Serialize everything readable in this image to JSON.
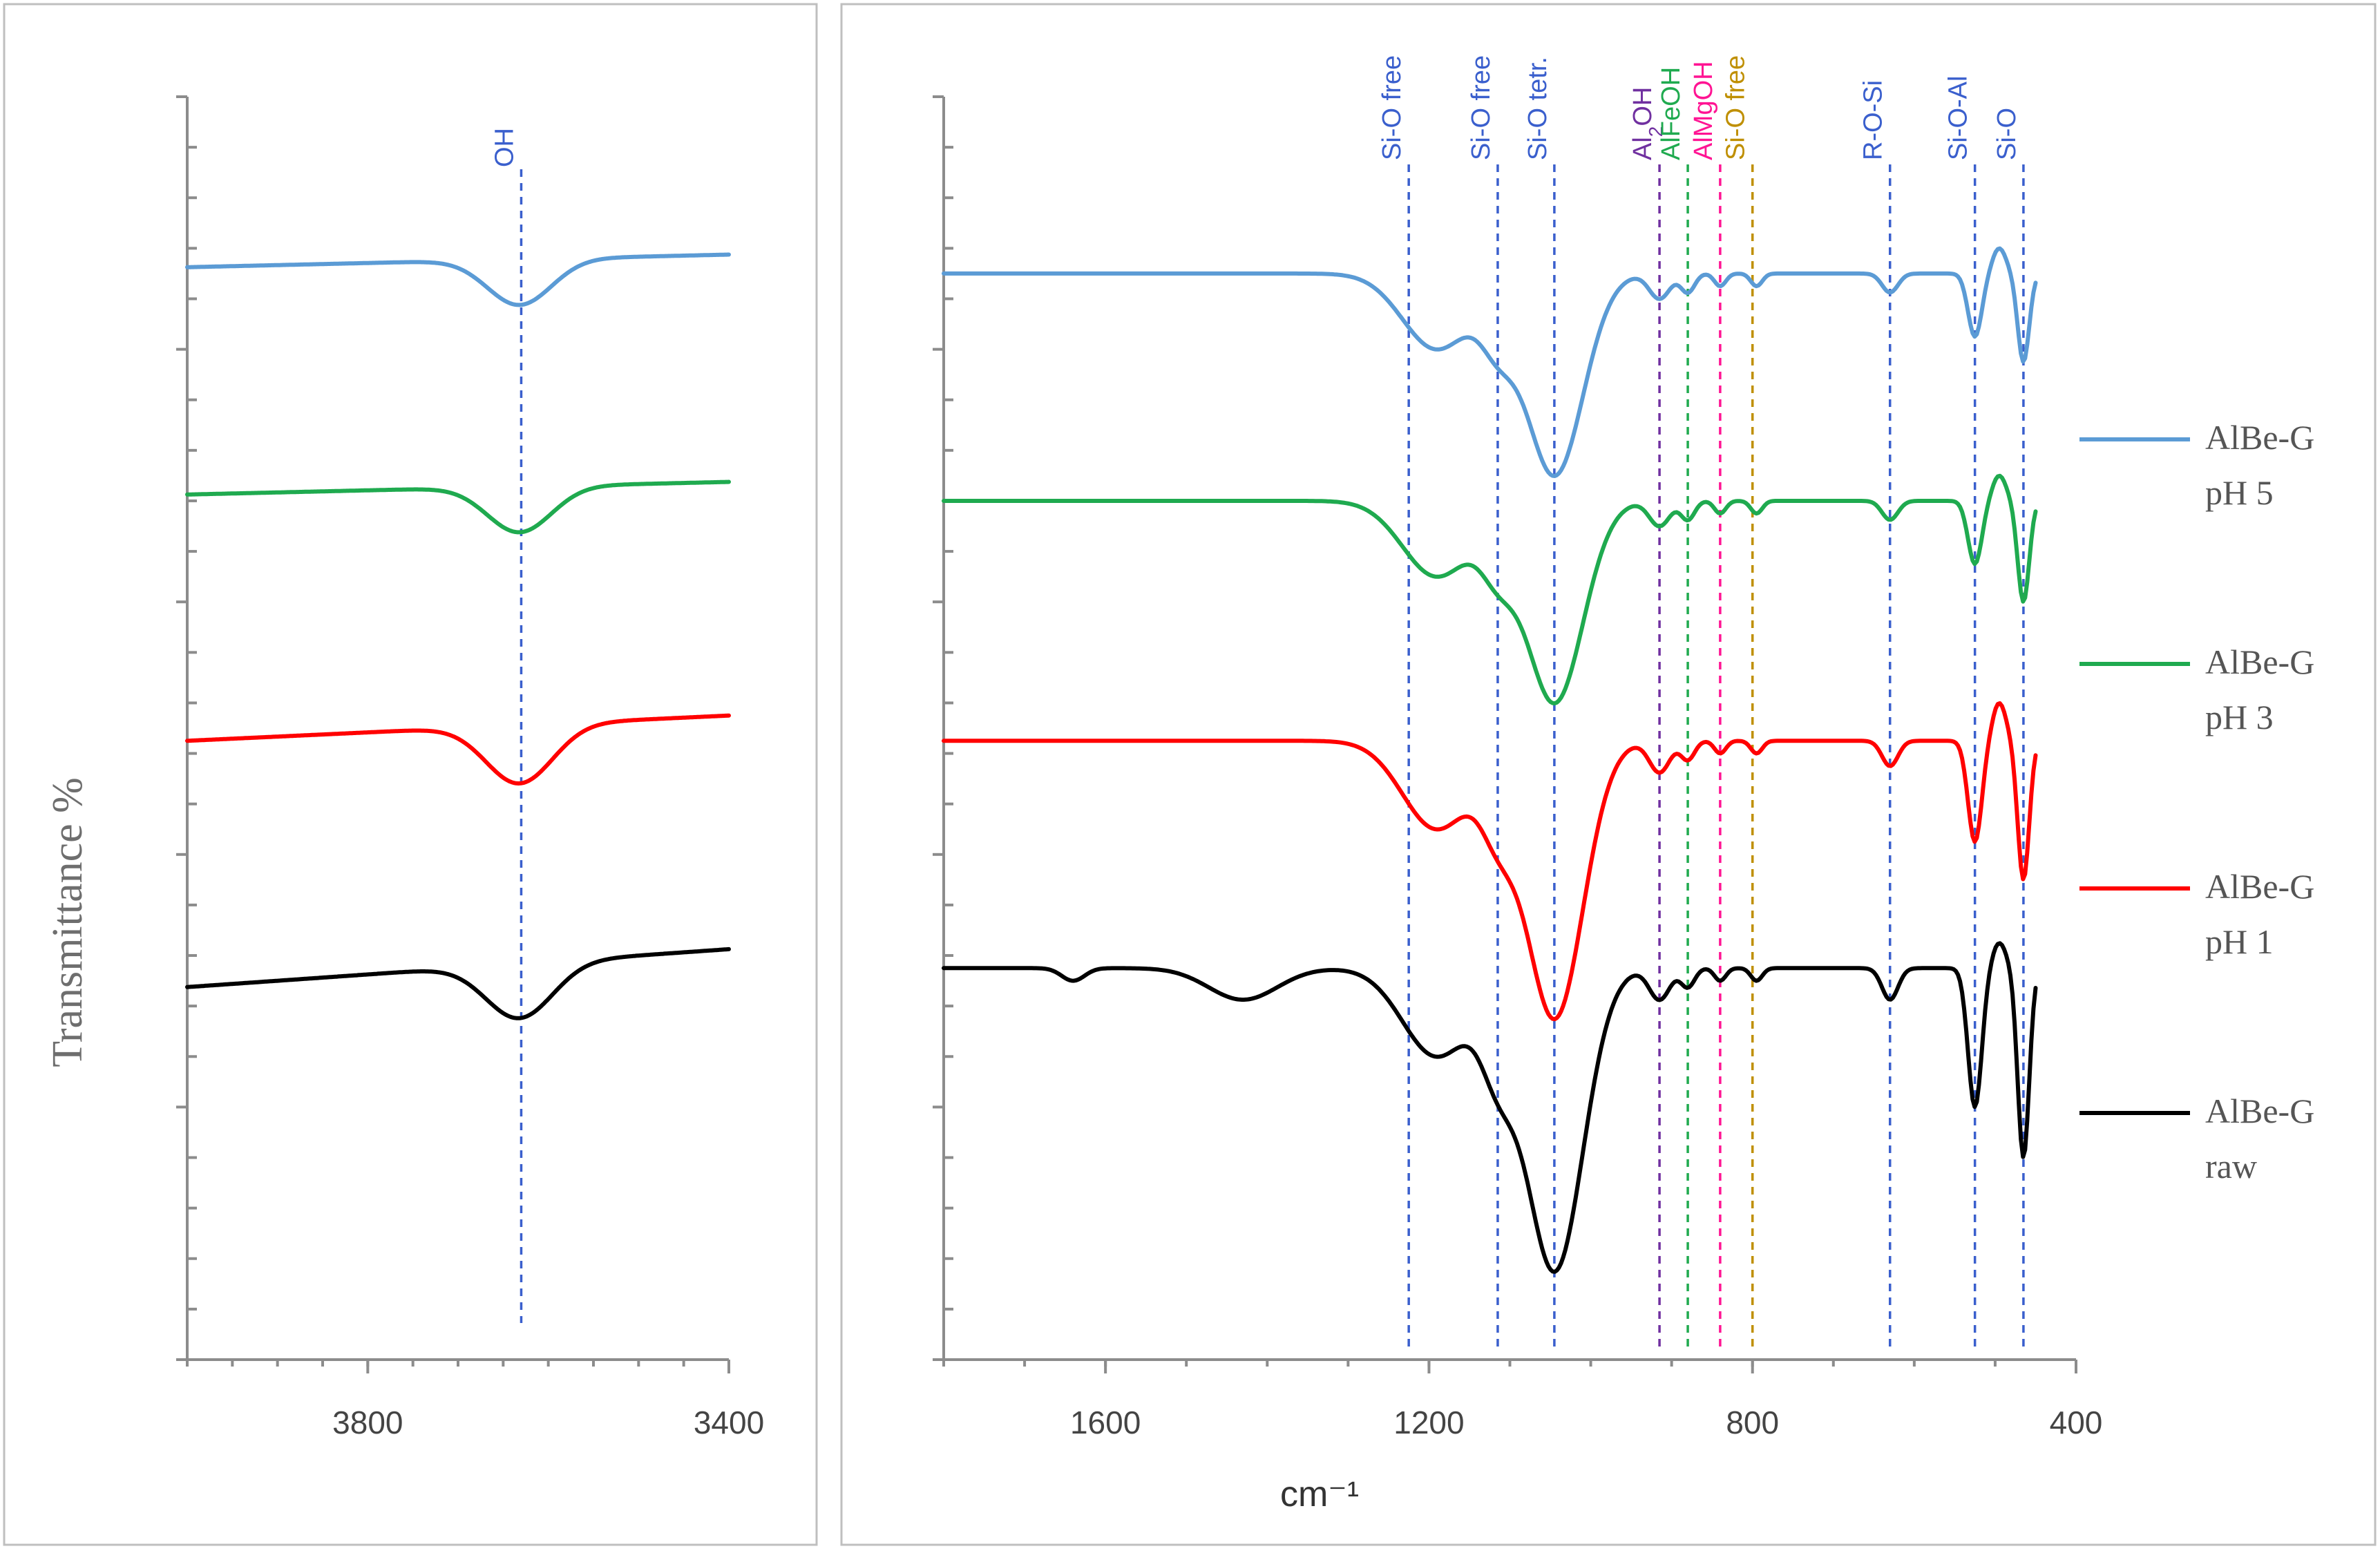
{
  "chart_data": [
    {
      "id": "left",
      "type": "line",
      "title": "",
      "xlabel": "",
      "ylabel": "Transmittance %",
      "xlim": [
        4000,
        3400
      ],
      "x_reversed": true,
      "ylim": [
        0,
        100
      ],
      "ticks": [
        {
          "value": 3800,
          "label": "3800"
        },
        {
          "value": 3400,
          "label": "3400"
        }
      ],
      "major_y_count": 5,
      "minor_per_major": 4,
      "annotations": [
        {
          "x": 3630,
          "label": "OH",
          "color": "#3a5fcd"
        }
      ],
      "series": [
        {
          "name": "AlBe-G pH 5",
          "color": "#5b9bd5",
          "baseline": 87,
          "slope": -1,
          "bands": [
            [
              3632,
              3.6,
              50
            ]
          ]
        },
        {
          "name": "AlBe-G pH 3",
          "color": "#1faa4f",
          "baseline": 69,
          "slope": -1,
          "bands": [
            [
              3632,
              3.6,
              50
            ]
          ]
        },
        {
          "name": "AlBe-G pH 1",
          "color": "#ff0000",
          "baseline": 50,
          "slope": -2,
          "bands": [
            [
              3632,
              4.6,
              52
            ]
          ]
        },
        {
          "name": "AlBe-G raw",
          "color": "#000000",
          "baseline": 31,
          "slope": -3,
          "bands": [
            [
              3632,
              4.3,
              52
            ]
          ]
        }
      ]
    },
    {
      "id": "right",
      "type": "line",
      "title": "",
      "xlabel": "cm⁻¹",
      "ylabel": "",
      "xlim": [
        1800,
        400
      ],
      "x_reversed": true,
      "ylim": [
        0,
        100
      ],
      "ticks": [
        {
          "value": 1600,
          "label": "1600"
        },
        {
          "value": 1200,
          "label": "1200"
        },
        {
          "value": 800,
          "label": "800"
        },
        {
          "value": 400,
          "label": "400"
        }
      ],
      "major_y_count": 5,
      "minor_per_major": 4,
      "annotations": [
        {
          "x": 1225,
          "label": "Si-O free",
          "color": "#3a5fcd"
        },
        {
          "x": 1115,
          "label": "Si-O free",
          "color": "#3a5fcd"
        },
        {
          "x": 1045,
          "label": "Si-O tetr.",
          "color": "#3a5fcd"
        },
        {
          "x": 915,
          "label": "Al₂OH",
          "color": "#7030a0"
        },
        {
          "x": 880,
          "label": "AlFeOH",
          "color": "#1faa4f"
        },
        {
          "x": 840,
          "label": "AlMgOH",
          "color": "#ff1493"
        },
        {
          "x": 800,
          "label": "Si-O free",
          "color": "#bf8f00"
        },
        {
          "x": 630,
          "label": "R-O-Si",
          "color": "#3a5fcd"
        },
        {
          "x": 525,
          "label": "Si-O-Al",
          "color": "#3a5fcd"
        },
        {
          "x": 465,
          "label": "Si-O",
          "color": "#3a5fcd"
        }
      ],
      "series": [
        {
          "name": "AlBe-G pH 5",
          "color": "#5b9bd5",
          "baseline": 86,
          "slope": 0,
          "bands": [
            [
              1045,
              16,
              50
            ],
            [
              1115,
              4,
              30
            ],
            [
              1190,
              6,
              60
            ],
            [
              915,
              2,
              18
            ],
            [
              880,
              1.5,
              12
            ],
            [
              840,
              1,
              10
            ],
            [
              795,
              1,
              10
            ],
            [
              630,
              1.5,
              14
            ],
            [
              525,
              5,
              12
            ],
            [
              465,
              7,
              10
            ]
          ],
          "hump": [
            495,
            2,
            12
          ]
        },
        {
          "name": "AlBe-G pH 3",
          "color": "#1faa4f",
          "baseline": 68,
          "slope": 0,
          "bands": [
            [
              1045,
              16,
              50
            ],
            [
              1115,
              4,
              30
            ],
            [
              1190,
              6,
              60
            ],
            [
              915,
              2,
              18
            ],
            [
              880,
              1.5,
              12
            ],
            [
              840,
              1,
              10
            ],
            [
              795,
              1,
              10
            ],
            [
              630,
              1.5,
              14
            ],
            [
              525,
              5,
              12
            ],
            [
              465,
              8,
              10
            ]
          ],
          "hump": [
            495,
            2,
            12
          ]
        },
        {
          "name": "AlBe-G pH 1",
          "color": "#ff0000",
          "baseline": 49,
          "slope": 0,
          "bands": [
            [
              1045,
              22,
              50
            ],
            [
              1115,
              5,
              30
            ],
            [
              1190,
              7,
              60
            ],
            [
              915,
              2.5,
              18
            ],
            [
              880,
              1.5,
              12
            ],
            [
              840,
              1,
              10
            ],
            [
              795,
              1,
              10
            ],
            [
              630,
              2,
              14
            ],
            [
              525,
              8,
              12
            ],
            [
              465,
              11,
              10
            ]
          ],
          "hump": [
            495,
            3,
            12
          ]
        },
        {
          "name": "AlBe-G raw",
          "color": "#000000",
          "baseline": 31,
          "slope": 0,
          "bands": [
            [
              1045,
              24,
              50
            ],
            [
              1115,
              6,
              30
            ],
            [
              1190,
              7,
              60
            ],
            [
              915,
              2.5,
              18
            ],
            [
              880,
              1.5,
              12
            ],
            [
              840,
              1,
              10
            ],
            [
              795,
              1,
              10
            ],
            [
              630,
              2.5,
              14
            ],
            [
              525,
              11,
              12
            ],
            [
              465,
              15,
              10
            ],
            [
              1430,
              2.5,
              60
            ],
            [
              1640,
              1,
              20
            ]
          ],
          "hump": [
            495,
            2,
            12
          ]
        }
      ]
    }
  ],
  "legend": {
    "position": "right",
    "entries": [
      {
        "line1": "AlBe-G",
        "line2": "pH 5",
        "color": "#5b9bd5"
      },
      {
        "line1": "AlBe-G",
        "line2": "pH 3",
        "color": "#1faa4f"
      },
      {
        "line1": "AlBe-G",
        "line2": "pH 1",
        "color": "#ff0000"
      },
      {
        "line1": "AlBe-G",
        "line2": "raw",
        "color": "#000000"
      }
    ]
  }
}
